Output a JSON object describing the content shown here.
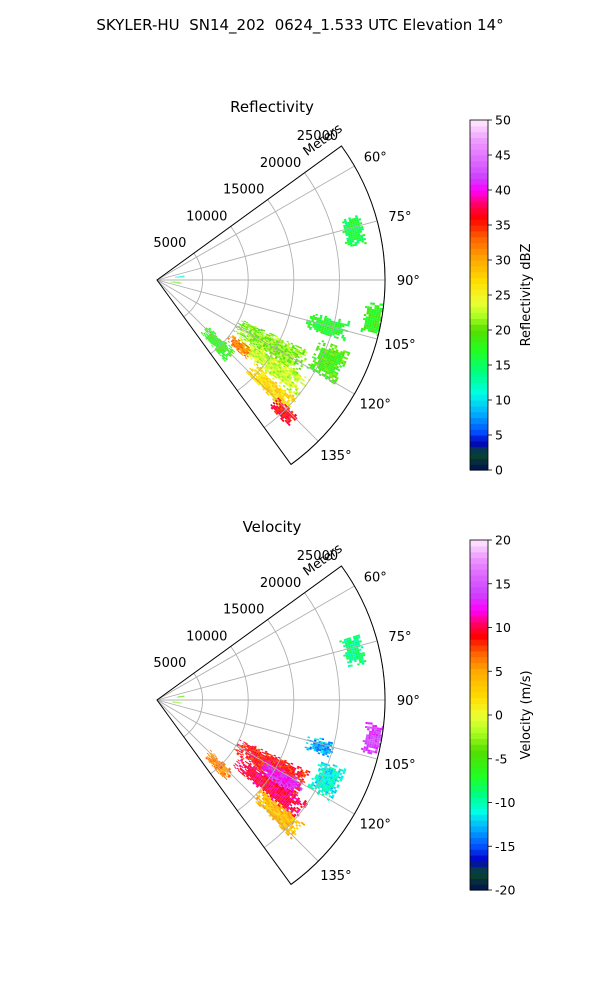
{
  "figure": {
    "title": "SKYLER-HU  SN14_202  0624_1.533 UTC Elevation 14°"
  },
  "colors": {
    "grid": "#b0b0b0",
    "axis_edge": "#000000"
  },
  "chart_data": [
    {
      "type": "heatmap",
      "projection": "polar-sector",
      "title": "Reflectivity",
      "radial_label": "Meters",
      "radial_ticks": [
        5000,
        10000,
        15000,
        20000,
        25000
      ],
      "radial_range": [
        0,
        25000
      ],
      "azimuth_ticks": [
        "60°",
        "75°",
        "90°",
        "105°",
        "120°",
        "135°"
      ],
      "azimuth_tick_values": [
        60,
        75,
        90,
        105,
        120,
        135
      ],
      "azimuth_range": [
        54,
        144
      ],
      "grid": true,
      "colorbar": {
        "label": "Reflectivity dBZ",
        "range": [
          0,
          50
        ],
        "ticks": [
          0,
          5,
          10,
          15,
          20,
          25,
          30,
          35,
          40,
          45,
          50
        ],
        "colorscale": [
          [
            0,
            "#00104f"
          ],
          [
            2.5,
            "#0a4a2a"
          ],
          [
            4,
            "#0000c8"
          ],
          [
            5.5,
            "#0050ff"
          ],
          [
            8,
            "#00aaff"
          ],
          [
            11,
            "#00ffe6"
          ],
          [
            14,
            "#00ff80"
          ],
          [
            17,
            "#22ff22"
          ],
          [
            20,
            "#55dd00"
          ],
          [
            22,
            "#aaff22"
          ],
          [
            24,
            "#eeff33"
          ],
          [
            27,
            "#ffdd00"
          ],
          [
            30,
            "#ffaa00"
          ],
          [
            33,
            "#ff6600"
          ],
          [
            36,
            "#ff0000"
          ],
          [
            38,
            "#ff0066"
          ],
          [
            40,
            "#ff00ff"
          ],
          [
            42,
            "#cc44ff"
          ],
          [
            44,
            "#dd66ff"
          ],
          [
            47,
            "#ee99ff"
          ],
          [
            50,
            "#ffeaff"
          ]
        ]
      },
      "echo_regions": [
        {
          "az": [
            72,
            80
          ],
          "r": [
            21000,
            23200
          ],
          "value": 16
        },
        {
          "az": [
            96,
            104
          ],
          "r": [
            23000,
            25000
          ],
          "value": 18
        },
        {
          "az": [
            102,
            108
          ],
          "r": [
            17000,
            21500
          ],
          "value": 17
        },
        {
          "az": [
            110,
            120
          ],
          "r": [
            19000,
            22500
          ],
          "value": 19
        },
        {
          "az": [
            115,
            124
          ],
          "r": [
            10000,
            18500
          ],
          "value": 21
        },
        {
          "az": [
            123,
            130
          ],
          "r": [
            11000,
            20000
          ],
          "value": 23
        },
        {
          "az": [
            126,
            131
          ],
          "r": [
            10000,
            13000
          ],
          "value": 32
        },
        {
          "az": [
            130,
            136
          ],
          "r": [
            14000,
            20000
          ],
          "value": 27
        },
        {
          "az": [
            134,
            138
          ],
          "r": [
            18500,
            21500
          ],
          "value": 36
        },
        {
          "az": [
            132,
            140
          ],
          "r": [
            7500,
            11500
          ],
          "value": 18
        },
        {
          "az": [
            80,
            84
          ],
          "r": [
            2000,
            3000
          ],
          "value": 12
        },
        {
          "az": [
            95,
            99
          ],
          "r": [
            1500,
            2600
          ],
          "value": 20
        }
      ]
    },
    {
      "type": "heatmap",
      "projection": "polar-sector",
      "title": "Velocity",
      "radial_label": "Meters",
      "radial_ticks": [
        5000,
        10000,
        15000,
        20000,
        25000
      ],
      "radial_range": [
        0,
        25000
      ],
      "azimuth_ticks": [
        "60°",
        "75°",
        "90°",
        "105°",
        "120°",
        "135°"
      ],
      "azimuth_tick_values": [
        60,
        75,
        90,
        105,
        120,
        135
      ],
      "azimuth_range": [
        54,
        144
      ],
      "grid": true,
      "colorbar": {
        "label": "Velocity (m/s)",
        "range": [
          -20,
          20
        ],
        "ticks": [
          -20,
          -15,
          -10,
          -5,
          0,
          5,
          10,
          15,
          20
        ],
        "colorscale": [
          [
            -20,
            "#00104f"
          ],
          [
            -18,
            "#0a4a2a"
          ],
          [
            -16.5,
            "#0000c8"
          ],
          [
            -15,
            "#0050ff"
          ],
          [
            -13,
            "#00aaff"
          ],
          [
            -11,
            "#00ffe6"
          ],
          [
            -9,
            "#00ff80"
          ],
          [
            -7,
            "#22ff22"
          ],
          [
            -4,
            "#55dd00"
          ],
          [
            -2,
            "#aaff22"
          ],
          [
            0,
            "#eeff33"
          ],
          [
            2,
            "#ffdd00"
          ],
          [
            5,
            "#ffaa00"
          ],
          [
            7,
            "#ff6600"
          ],
          [
            9,
            "#ff0000"
          ],
          [
            10.5,
            "#ff0066"
          ],
          [
            12,
            "#ff00ff"
          ],
          [
            14,
            "#cc44ff"
          ],
          [
            16,
            "#dd66ff"
          ],
          [
            18,
            "#ee99ff"
          ],
          [
            20,
            "#ffeaff"
          ]
        ]
      },
      "echo_regions": [
        {
          "az": [
            72,
            80
          ],
          "r": [
            21000,
            23200
          ],
          "value": -9
        },
        {
          "az": [
            96,
            104
          ],
          "r": [
            23000,
            25000
          ],
          "value": 14
        },
        {
          "az": [
            103,
            108
          ],
          "r": [
            17000,
            20000
          ],
          "value": -13
        },
        {
          "az": [
            110,
            120
          ],
          "r": [
            19000,
            22000
          ],
          "value": -11
        },
        {
          "az": [
            115,
            124
          ],
          "r": [
            10000,
            18500
          ],
          "value": 9
        },
        {
          "az": [
            119,
            126
          ],
          "r": [
            13500,
            18500
          ],
          "value": 13
        },
        {
          "az": [
            124,
            131
          ],
          "r": [
            11000,
            20000
          ],
          "value": 10
        },
        {
          "az": [
            130,
            136
          ],
          "r": [
            15000,
            21000
          ],
          "value": 4
        },
        {
          "az": [
            133,
            140
          ],
          "r": [
            8000,
            11500
          ],
          "value": 6
        },
        {
          "az": [
            80,
            84
          ],
          "r": [
            2000,
            3000
          ],
          "value": -4
        },
        {
          "az": [
            95,
            99
          ],
          "r": [
            1500,
            2600
          ],
          "value": -3
        }
      ]
    }
  ]
}
